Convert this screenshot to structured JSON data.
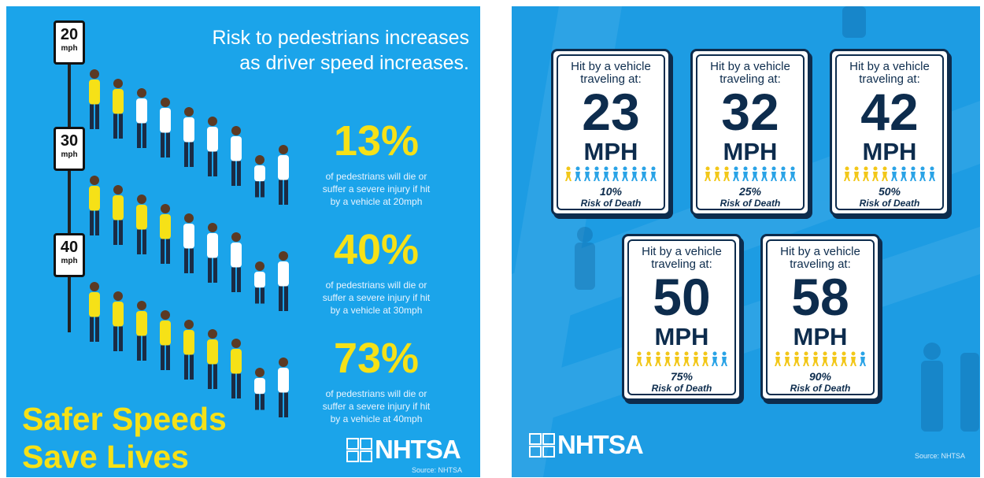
{
  "left": {
    "title": [
      "Risk to pedestrians increases",
      "as driver speed increases."
    ],
    "signs": [
      {
        "speed": "20",
        "unit": "mph"
      },
      {
        "speed": "30",
        "unit": "mph"
      },
      {
        "speed": "40",
        "unit": "mph"
      }
    ],
    "stats": [
      {
        "value": "13%",
        "lines": [
          "of pedestrians will die or",
          "suffer a severe injury if hit",
          "by a vehicle at 20mph"
        ]
      },
      {
        "value": "40%",
        "lines": [
          "of pedestrians will die or",
          "suffer a severe injury if hit",
          "by a vehicle at 30mph"
        ]
      },
      {
        "value": "73%",
        "lines": [
          "of pedestrians will die or",
          "suffer a severe injury if hit",
          "by a vehicle at 40mph"
        ]
      }
    ],
    "slogan": [
      "Safer Speeds",
      "Save Lives"
    ],
    "logo": "NHTSA",
    "source": "Source: NHTSA"
  },
  "right": {
    "cards": [
      {
        "heading": "Hit by a vehicle traveling at:",
        "speed": "23",
        "unit": "MPH",
        "risk": "10%",
        "risk_label": "Risk of Death"
      },
      {
        "heading": "Hit by a vehicle traveling at:",
        "speed": "32",
        "unit": "MPH",
        "risk": "25%",
        "risk_label": "Risk of Death"
      },
      {
        "heading": "Hit by a vehicle traveling at:",
        "speed": "42",
        "unit": "MPH",
        "risk": "50%",
        "risk_label": "Risk of Death"
      },
      {
        "heading": "Hit by a vehicle traveling at:",
        "speed": "50",
        "unit": "MPH",
        "risk": "75%",
        "risk_label": "Risk of Death"
      },
      {
        "heading": "Hit by a vehicle traveling at:",
        "speed": "58",
        "unit": "MPH",
        "risk": "90%",
        "risk_label": "Risk of Death"
      }
    ],
    "logo": "NHTSA",
    "source": "Source: NHTSA"
  }
}
